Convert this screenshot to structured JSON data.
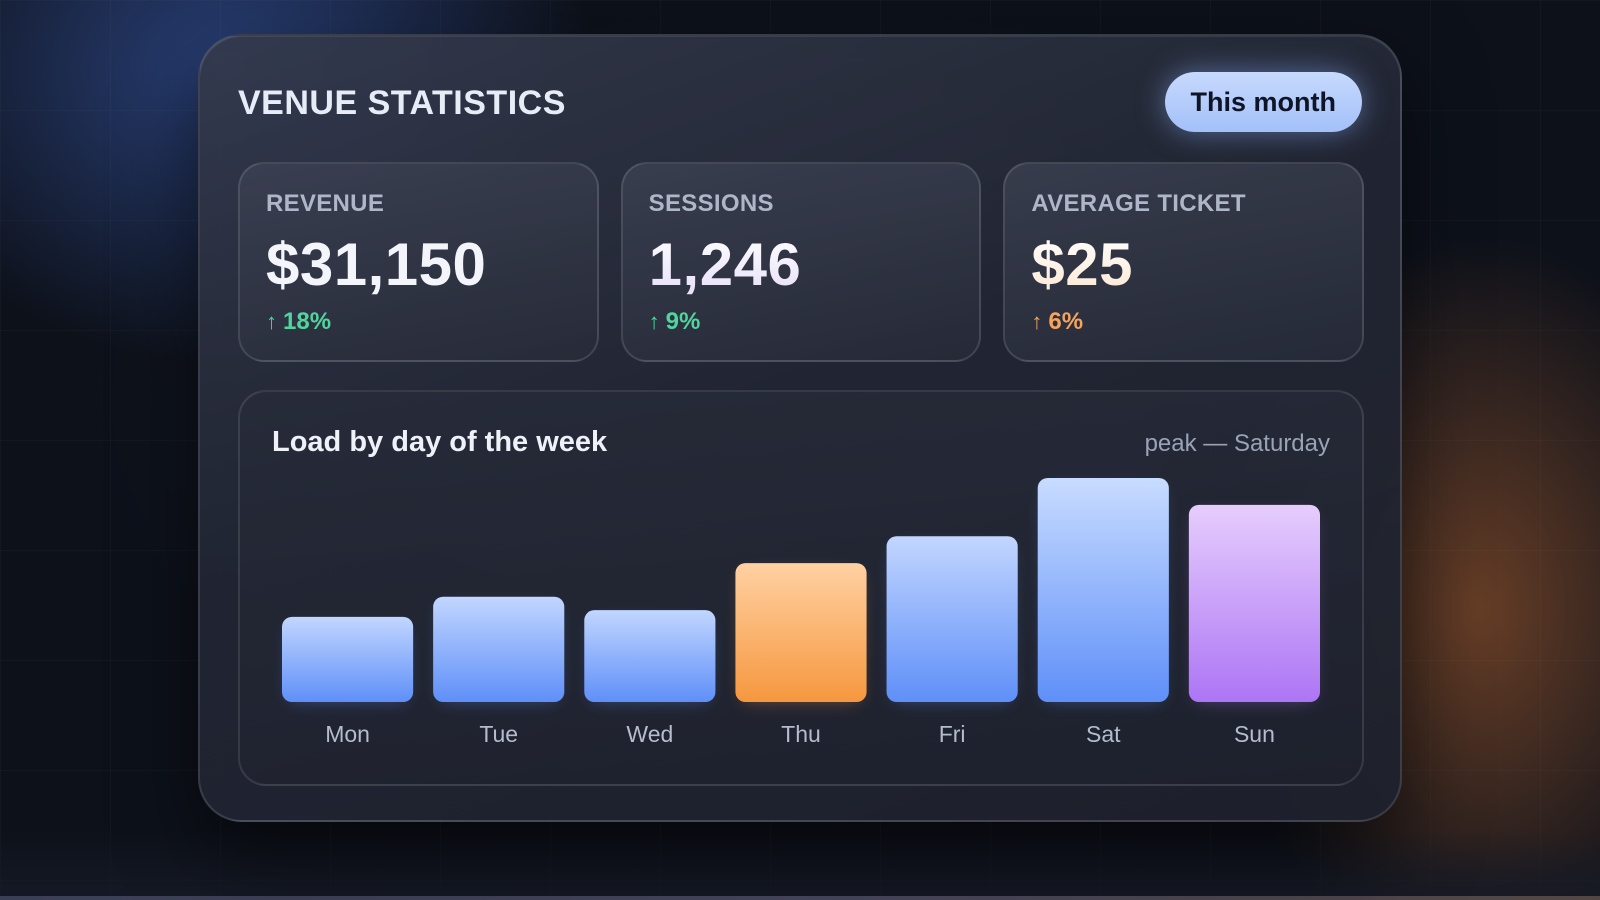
{
  "card": {
    "title": "VENUE STATISTICS",
    "period_button": "This month"
  },
  "stats": [
    {
      "label": "REVENUE",
      "value": "$31,150",
      "change_arrow": "↑",
      "change": "18%",
      "change_color": "#4fd69c",
      "value_style": "plain"
    },
    {
      "label": "SESSIONS",
      "value": "1,246",
      "change_arrow": "↑",
      "change": "9%",
      "change_color": "#4fd69c",
      "value_style": "tinted"
    },
    {
      "label": "AVERAGE TICKET",
      "value": "$25",
      "change_arrow": "↑",
      "change": "6%",
      "change_color": "#f5a35d",
      "value_style": "warm"
    }
  ],
  "chart": {
    "title": "Load by day of the week",
    "note": "peak — Saturday"
  },
  "chart_data": {
    "type": "bar",
    "title": "Load by day of the week",
    "xlabel": "",
    "ylabel": "",
    "categories": [
      "Mon",
      "Tue",
      "Wed",
      "Thu",
      "Fri",
      "Sat",
      "Sun"
    ],
    "values": [
      38,
      47,
      41,
      62,
      74,
      100,
      88
    ],
    "ylim": [
      0,
      100
    ],
    "grid": false,
    "colors": {
      "default": [
        "#c2d6ff",
        "#5f8ff8"
      ],
      "Thu": [
        "#ffd1a2",
        "#f6973f"
      ],
      "Sat": [
        "#c8dcff",
        "#5f8ff8"
      ],
      "Sun": [
        "#e6cdfd",
        "#ad75f5"
      ]
    }
  }
}
